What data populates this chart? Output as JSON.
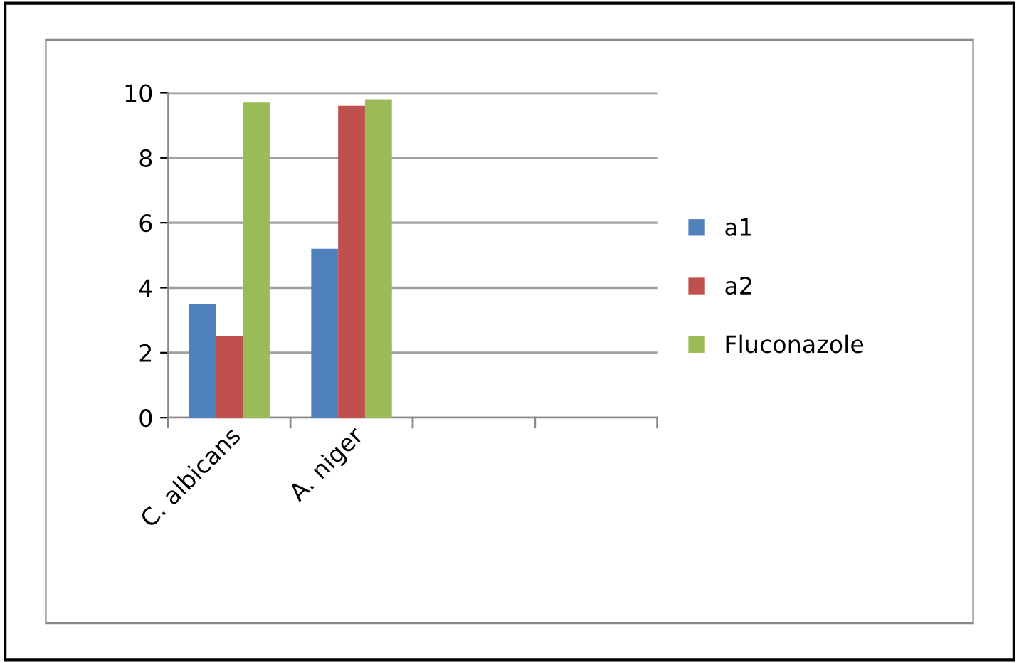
{
  "chart_data": {
    "type": "bar",
    "categories": [
      "C. albicans",
      "A. niger",
      null,
      null
    ],
    "series": [
      {
        "name": "a1",
        "color": "#4f81bd",
        "values": [
          3.5,
          5.2,
          null,
          null
        ]
      },
      {
        "name": "a2",
        "color": "#c0504d",
        "values": [
          2.5,
          9.6,
          null,
          null
        ]
      },
      {
        "name": "Fluconazole",
        "color": "#9bbb59",
        "values": [
          9.7,
          9.8,
          null,
          null
        ]
      }
    ],
    "ylim": [
      0,
      10
    ],
    "yticks": [
      0,
      2,
      4,
      6,
      8,
      10
    ],
    "grid": "y",
    "legend": "right"
  }
}
